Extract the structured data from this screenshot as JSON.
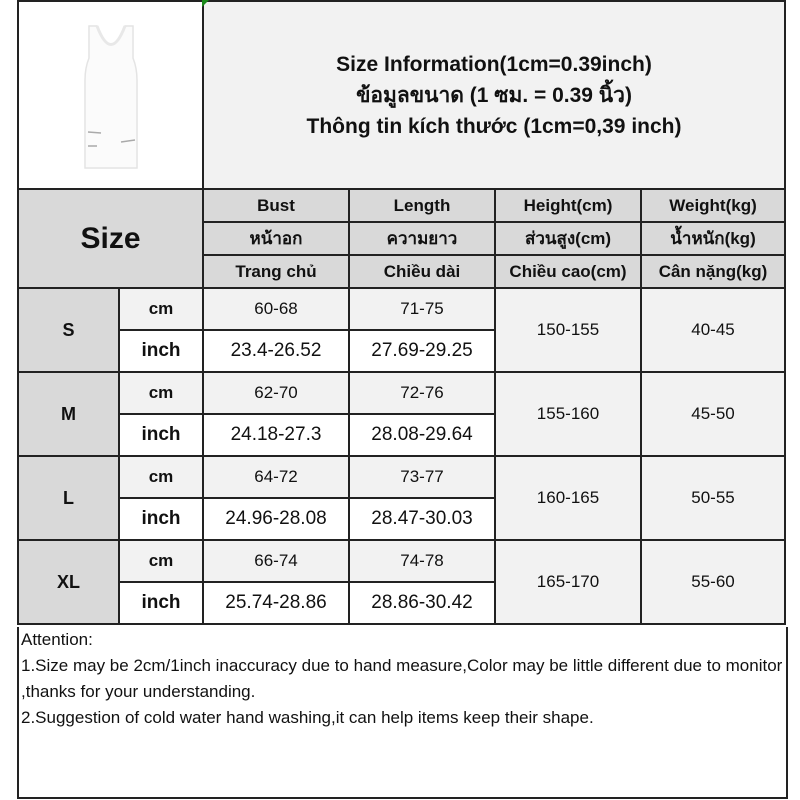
{
  "title": {
    "en": "Size Information(1cm=0.39inch)",
    "th": "ข้อมูลขนาด (1 ซม. = 0.39 นิ้ว)",
    "vi": "Thông tin kích thước (1cm=0,39 inch)"
  },
  "product_image": "white sleeveless tank dress with zipper pockets",
  "size_header": "Size",
  "columns": [
    {
      "en": "Bust",
      "th": "หน้าอก",
      "vi": "Trang chủ"
    },
    {
      "en": "Length",
      "th": "ความยาว",
      "vi": "Chiều dài"
    },
    {
      "en": "Height(cm)",
      "th": "ส่วนสูง(cm)",
      "vi": "Chiều cao(cm)"
    },
    {
      "en": "Weight(kg)",
      "th": "น้ำหนัก(kg)",
      "vi": "Cân nặng(kg)"
    }
  ],
  "units": {
    "cm": "cm",
    "inch": "inch"
  },
  "rows": [
    {
      "size": "S",
      "bust_cm": "60-68",
      "length_cm": "71-75",
      "bust_inch": "23.4-26.52",
      "length_inch": "27.69-29.25",
      "height": "150-155",
      "weight": "40-45"
    },
    {
      "size": "M",
      "bust_cm": "62-70",
      "length_cm": "72-76",
      "bust_inch": "24.18-27.3",
      "length_inch": "28.08-29.64",
      "height": "155-160",
      "weight": "45-50"
    },
    {
      "size": "L",
      "bust_cm": "64-72",
      "length_cm": "73-77",
      "bust_inch": "24.96-28.08",
      "length_inch": "28.47-30.03",
      "height": "160-165",
      "weight": "50-55"
    },
    {
      "size": "XL",
      "bust_cm": "66-74",
      "length_cm": "74-78",
      "bust_inch": "25.74-28.86",
      "length_inch": "28.86-30.42",
      "height": "165-170",
      "weight": "55-60"
    }
  ],
  "attention": {
    "heading": "Attention:",
    "line1": "1.Size may be 2cm/1inch inaccuracy due to hand measure,Color may be little different due to monitor ,thanks for your understanding.",
    "line2": "2.Suggestion of cold water hand washing,it can help items keep their shape."
  }
}
